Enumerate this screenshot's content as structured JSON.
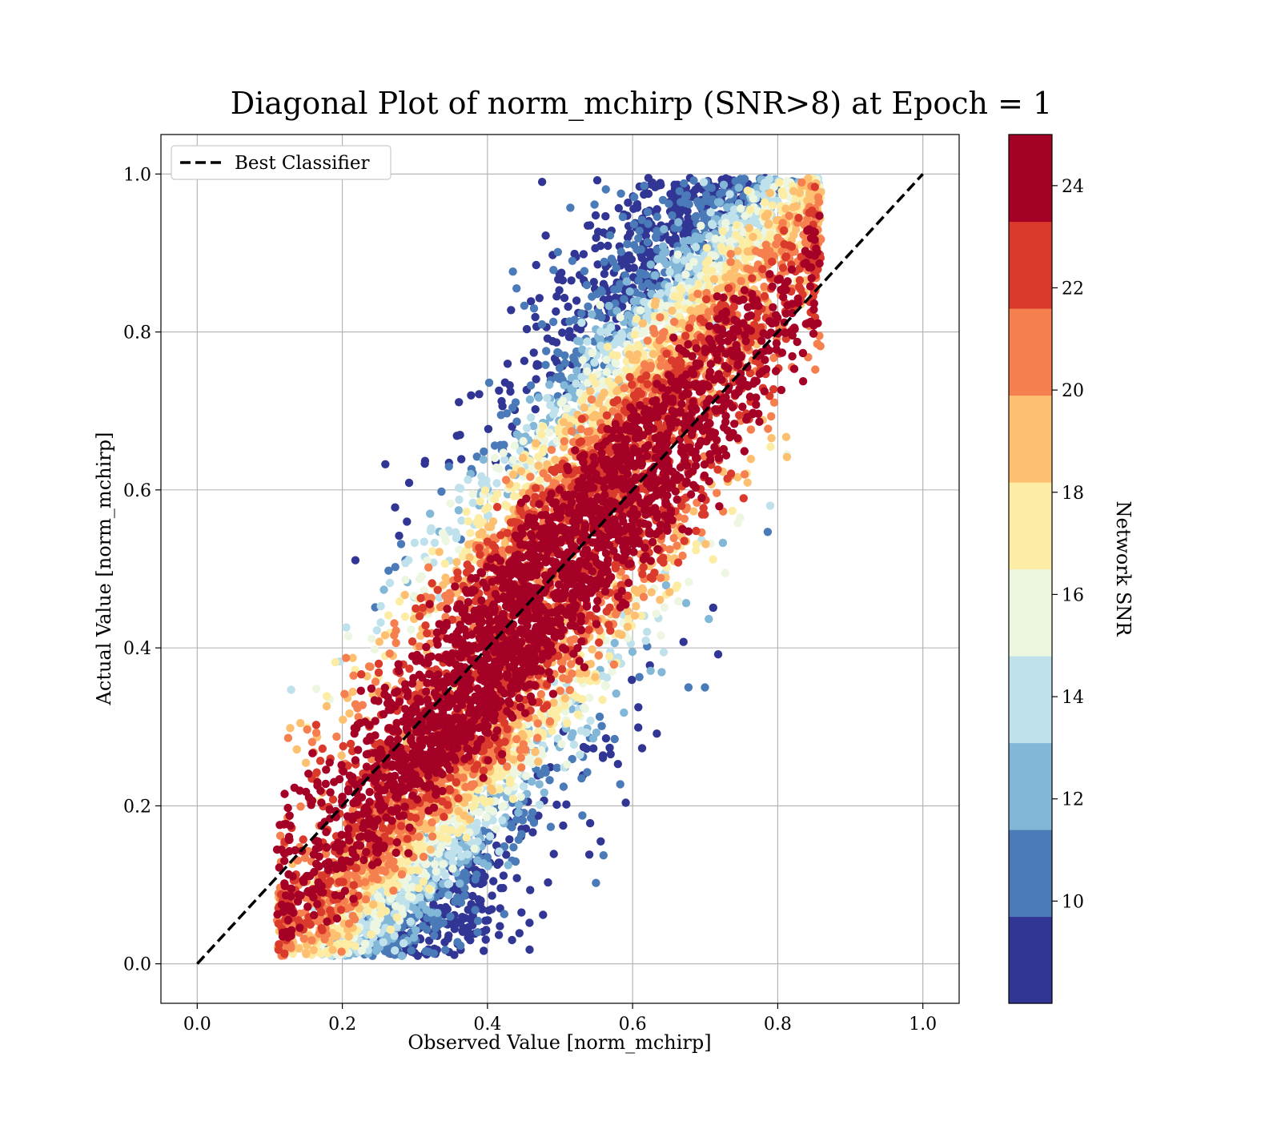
{
  "chart_data": {
    "type": "scatter",
    "title": "Diagonal Plot of norm_mchirp (SNR>8) at Epoch = 1",
    "xlabel": "Observed Value [norm_mchirp]",
    "ylabel": "Actual Value [norm_mchirp]",
    "xlim": [
      -0.05,
      1.05
    ],
    "ylim": [
      -0.05,
      1.05
    ],
    "x_ticks": [
      "0.0",
      "0.2",
      "0.4",
      "0.6",
      "0.8",
      "1.0"
    ],
    "y_ticks": [
      "0.0",
      "0.2",
      "0.4",
      "0.6",
      "0.8",
      "1.0"
    ],
    "grid": true,
    "legend": {
      "placement": "top-left",
      "entries": [
        {
          "label": "Best Classifier",
          "style": "dashed",
          "color": "#000000"
        }
      ]
    },
    "reference_line": {
      "name": "Best Classifier",
      "x": [
        0.0,
        1.0
      ],
      "y": [
        0.0,
        1.0
      ]
    },
    "colorbar": {
      "label": "Network SNR",
      "range": [
        8,
        25
      ],
      "ticks": [
        "10",
        "12",
        "14",
        "16",
        "18",
        "20",
        "22",
        "24"
      ],
      "bins": [
        {
          "from": 8,
          "to": 9.7,
          "color": "#313695"
        },
        {
          "from": 9.7,
          "to": 11.4,
          "color": "#4a7ab7"
        },
        {
          "from": 11.4,
          "to": 13.1,
          "color": "#82b7d8"
        },
        {
          "from": 13.1,
          "to": 14.8,
          "color": "#bfe1ec"
        },
        {
          "from": 14.8,
          "to": 16.5,
          "color": "#ecf6e1"
        },
        {
          "from": 16.5,
          "to": 18.2,
          "color": "#fdeca4"
        },
        {
          "from": 18.2,
          "to": 19.9,
          "color": "#fdbf70"
        },
        {
          "from": 19.9,
          "to": 21.6,
          "color": "#f57f4e"
        },
        {
          "from": 21.6,
          "to": 23.3,
          "color": "#d93a2c"
        },
        {
          "from": 23.3,
          "to": 25,
          "color": "#a50026"
        }
      ]
    },
    "series_description": {
      "point_count_approx": 9000,
      "band_lower_edge": {
        "x": [
          0.11,
          0.2,
          0.6,
          0.85
        ],
        "y": [
          0.01,
          0.01,
          0.3,
          0.7
        ]
      },
      "band_upper_edge": {
        "x": [
          0.11,
          0.3,
          0.55,
          0.8
        ],
        "y": [
          0.12,
          0.6,
          1.0,
          1.0
        ]
      },
      "snr_trend": "high SNR (~24) concentrated along diagonal; low SNR (~9-14) at upper-left and lower-right edges of the band"
    }
  }
}
